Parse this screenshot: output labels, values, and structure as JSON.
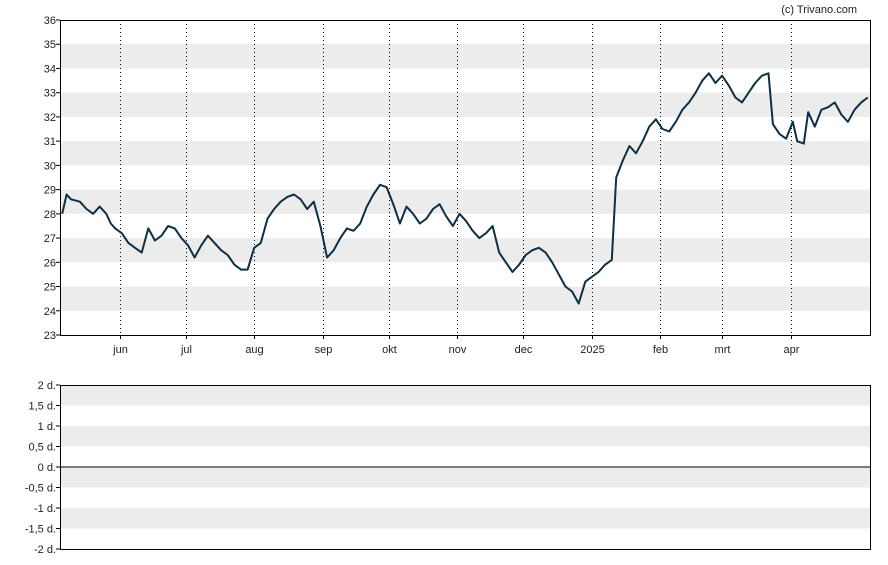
{
  "credit": "(c) Trivano.com",
  "colors": {
    "line": "#0e2f44",
    "band": "#ececec",
    "axis": "#000000",
    "grid": "#000000"
  },
  "chart_data": [
    {
      "type": "line",
      "title": "",
      "xlabel": "",
      "ylabel": "",
      "ylim": [
        23,
        36
      ],
      "y_ticks": [
        "23",
        "24",
        "25",
        "26",
        "27",
        "28",
        "29",
        "30",
        "31",
        "32",
        "33",
        "34",
        "35",
        "36"
      ],
      "x_ticks": [
        {
          "label": "jun",
          "date": "2024-06-01"
        },
        {
          "label": "jul",
          "date": "2024-07-01"
        },
        {
          "label": "aug",
          "date": "2024-08-01"
        },
        {
          "label": "sep",
          "date": "2024-09-01"
        },
        {
          "label": "okt",
          "date": "2024-10-01"
        },
        {
          "label": "nov",
          "date": "2024-11-01"
        },
        {
          "label": "dec",
          "date": "2024-12-01"
        },
        {
          "label": "2025",
          "date": "2025-01-01"
        },
        {
          "label": "feb",
          "date": "2025-02-01"
        },
        {
          "label": "mrt",
          "date": "2025-03-01"
        },
        {
          "label": "apr",
          "date": "2025-04-01"
        }
      ],
      "xlim": [
        "2024-05-05",
        "2025-05-07"
      ],
      "grid": "vertical dotted at month ticks, alternating horizontal bands",
      "series": [
        {
          "values": [
            [
              "2024-05-06",
              28.0
            ],
            [
              "2024-05-08",
              28.8
            ],
            [
              "2024-05-10",
              28.6
            ],
            [
              "2024-05-14",
              28.5
            ],
            [
              "2024-05-17",
              28.2
            ],
            [
              "2024-05-20",
              28.0
            ],
            [
              "2024-05-23",
              28.3
            ],
            [
              "2024-05-26",
              28.0
            ],
            [
              "2024-05-28",
              27.6
            ],
            [
              "2024-05-30",
              27.4
            ],
            [
              "2024-06-02",
              27.2
            ],
            [
              "2024-06-05",
              26.8
            ],
            [
              "2024-06-08",
              26.6
            ],
            [
              "2024-06-11",
              26.4
            ],
            [
              "2024-06-14",
              27.4
            ],
            [
              "2024-06-17",
              26.9
            ],
            [
              "2024-06-20",
              27.1
            ],
            [
              "2024-06-23",
              27.5
            ],
            [
              "2024-06-26",
              27.4
            ],
            [
              "2024-06-29",
              27.0
            ],
            [
              "2024-07-02",
              26.7
            ],
            [
              "2024-07-05",
              26.2
            ],
            [
              "2024-07-08",
              26.7
            ],
            [
              "2024-07-11",
              27.1
            ],
            [
              "2024-07-14",
              26.8
            ],
            [
              "2024-07-17",
              26.5
            ],
            [
              "2024-07-20",
              26.3
            ],
            [
              "2024-07-23",
              25.9
            ],
            [
              "2024-07-26",
              25.7
            ],
            [
              "2024-07-29",
              25.7
            ],
            [
              "2024-08-01",
              26.6
            ],
            [
              "2024-08-04",
              26.8
            ],
            [
              "2024-08-07",
              27.8
            ],
            [
              "2024-08-10",
              28.2
            ],
            [
              "2024-08-13",
              28.5
            ],
            [
              "2024-08-16",
              28.7
            ],
            [
              "2024-08-19",
              28.8
            ],
            [
              "2024-08-22",
              28.6
            ],
            [
              "2024-08-25",
              28.2
            ],
            [
              "2024-08-28",
              28.5
            ],
            [
              "2024-08-31",
              27.5
            ],
            [
              "2024-09-03",
              26.2
            ],
            [
              "2024-09-06",
              26.5
            ],
            [
              "2024-09-09",
              27.0
            ],
            [
              "2024-09-12",
              27.4
            ],
            [
              "2024-09-15",
              27.3
            ],
            [
              "2024-09-18",
              27.6
            ],
            [
              "2024-09-21",
              28.3
            ],
            [
              "2024-09-24",
              28.8
            ],
            [
              "2024-09-27",
              29.2
            ],
            [
              "2024-09-30",
              29.1
            ],
            [
              "2024-10-03",
              28.4
            ],
            [
              "2024-10-06",
              27.6
            ],
            [
              "2024-10-09",
              28.3
            ],
            [
              "2024-10-12",
              28.0
            ],
            [
              "2024-10-15",
              27.6
            ],
            [
              "2024-10-18",
              27.8
            ],
            [
              "2024-10-21",
              28.2
            ],
            [
              "2024-10-24",
              28.4
            ],
            [
              "2024-10-27",
              27.9
            ],
            [
              "2024-10-30",
              27.5
            ],
            [
              "2024-11-02",
              28.0
            ],
            [
              "2024-11-05",
              27.7
            ],
            [
              "2024-11-08",
              27.3
            ],
            [
              "2024-11-11",
              27.0
            ],
            [
              "2024-11-14",
              27.2
            ],
            [
              "2024-11-17",
              27.5
            ],
            [
              "2024-11-20",
              26.4
            ],
            [
              "2024-11-23",
              26.0
            ],
            [
              "2024-11-26",
              25.6
            ],
            [
              "2024-11-29",
              25.9
            ],
            [
              "2024-12-02",
              26.3
            ],
            [
              "2024-12-05",
              26.5
            ],
            [
              "2024-12-08",
              26.6
            ],
            [
              "2024-12-11",
              26.4
            ],
            [
              "2024-12-14",
              26.0
            ],
            [
              "2024-12-17",
              25.5
            ],
            [
              "2024-12-20",
              25.0
            ],
            [
              "2024-12-23",
              24.8
            ],
            [
              "2024-12-26",
              24.3
            ],
            [
              "2024-12-29",
              25.2
            ],
            [
              "2025-01-01",
              25.4
            ],
            [
              "2025-01-04",
              25.6
            ],
            [
              "2025-01-07",
              25.9
            ],
            [
              "2025-01-10",
              26.1
            ],
            [
              "2025-01-12",
              29.5
            ],
            [
              "2025-01-15",
              30.2
            ],
            [
              "2025-01-18",
              30.8
            ],
            [
              "2025-01-21",
              30.5
            ],
            [
              "2025-01-24",
              31.0
            ],
            [
              "2025-01-27",
              31.6
            ],
            [
              "2025-01-30",
              31.9
            ],
            [
              "2025-02-02",
              31.5
            ],
            [
              "2025-02-05",
              31.4
            ],
            [
              "2025-02-08",
              31.8
            ],
            [
              "2025-02-11",
              32.3
            ],
            [
              "2025-02-14",
              32.6
            ],
            [
              "2025-02-17",
              33.0
            ],
            [
              "2025-02-20",
              33.5
            ],
            [
              "2025-02-23",
              33.8
            ],
            [
              "2025-02-26",
              33.4
            ],
            [
              "2025-03-01",
              33.7
            ],
            [
              "2025-03-04",
              33.3
            ],
            [
              "2025-03-07",
              32.8
            ],
            [
              "2025-03-10",
              32.6
            ],
            [
              "2025-03-13",
              33.0
            ],
            [
              "2025-03-16",
              33.4
            ],
            [
              "2025-03-19",
              33.7
            ],
            [
              "2025-03-22",
              33.8
            ],
            [
              "2025-03-24",
              31.7
            ],
            [
              "2025-03-27",
              31.3
            ],
            [
              "2025-03-30",
              31.1
            ],
            [
              "2025-04-02",
              31.8
            ],
            [
              "2025-04-04",
              31.0
            ],
            [
              "2025-04-07",
              30.9
            ],
            [
              "2025-04-09",
              32.2
            ],
            [
              "2025-04-12",
              31.6
            ],
            [
              "2025-04-15",
              32.3
            ],
            [
              "2025-04-18",
              32.4
            ],
            [
              "2025-04-21",
              32.6
            ],
            [
              "2025-04-24",
              32.1
            ],
            [
              "2025-04-27",
              31.8
            ],
            [
              "2025-04-30",
              32.3
            ],
            [
              "2025-05-03",
              32.6
            ],
            [
              "2025-05-06",
              32.8
            ]
          ]
        }
      ]
    },
    {
      "type": "line",
      "title": "",
      "xlabel": "",
      "ylabel": "",
      "ylim": [
        -2,
        2
      ],
      "y_ticks": [
        "2 d.",
        "1,5 d.",
        "1 d.",
        "0,5 d.",
        "0 d.",
        "-0,5 d.",
        "-1 d.",
        "-1,5 d.",
        "-2 d."
      ],
      "reference_line": 0,
      "series": []
    }
  ]
}
